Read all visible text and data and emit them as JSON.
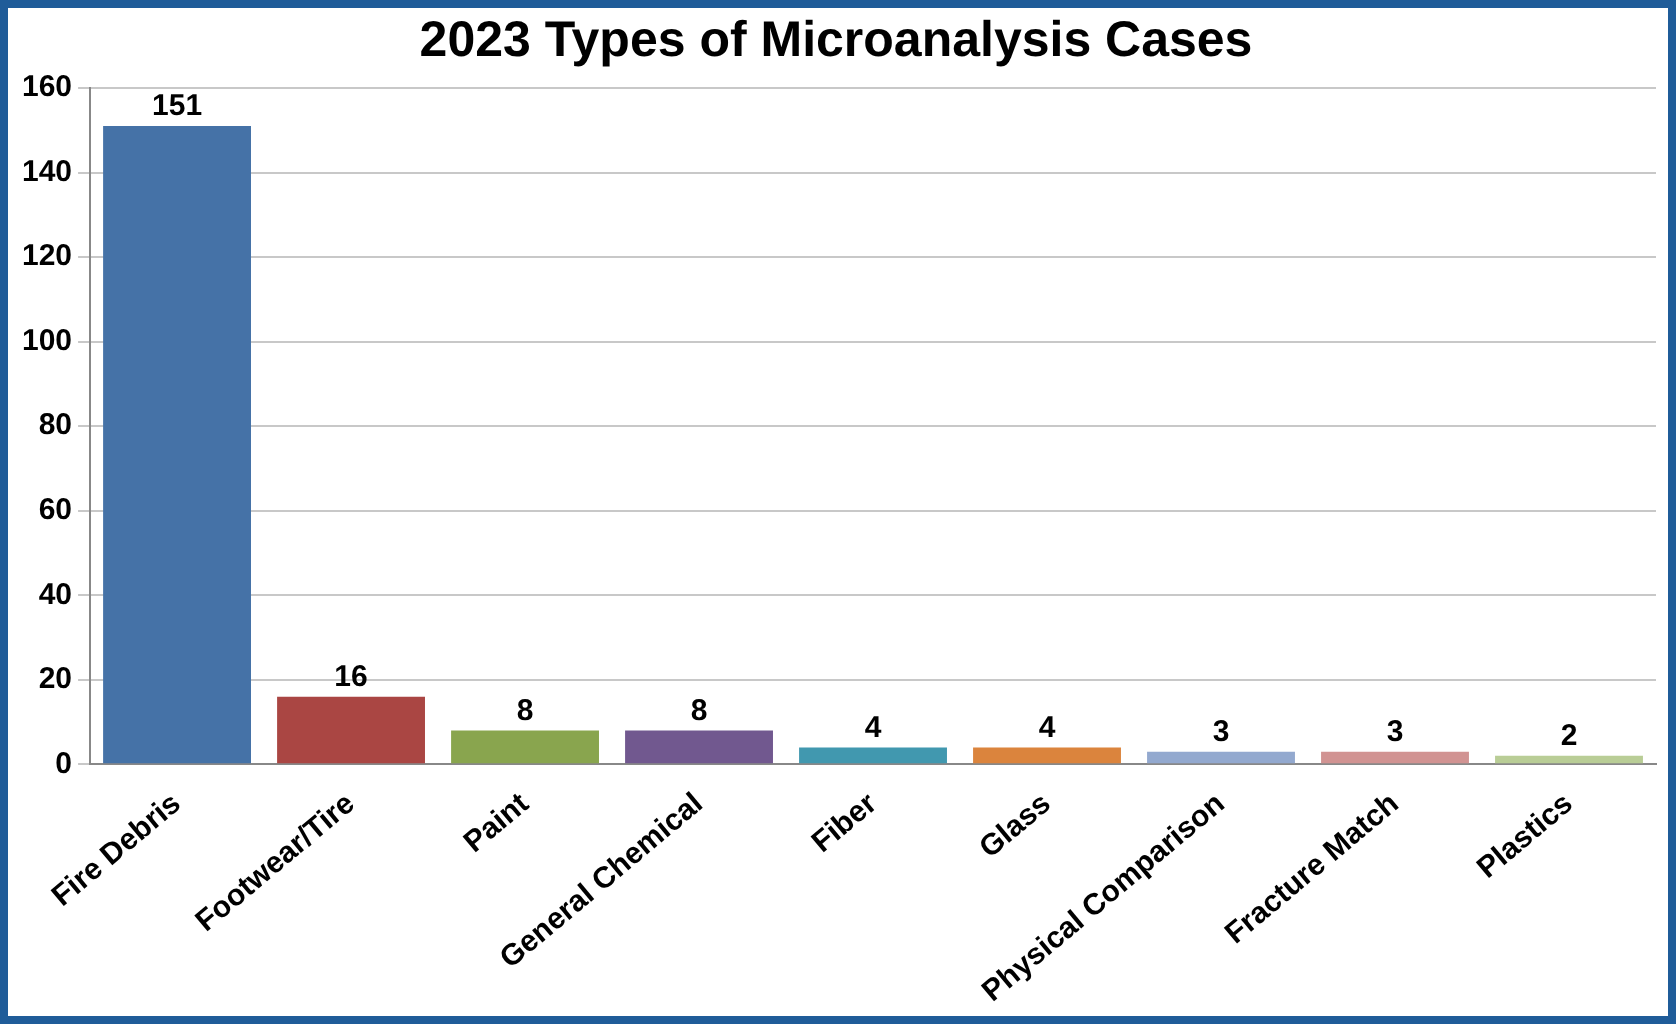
{
  "chart_data": {
    "type": "bar",
    "title": "2023 Types of Microanalysis Cases",
    "categories": [
      "Fire Debris",
      "Footwear/Tire",
      "Paint",
      "General Chemical",
      "Fiber",
      "Glass",
      "Physical Comparison",
      "Fracture Match",
      "Plastics"
    ],
    "values": [
      151,
      16,
      8,
      8,
      4,
      4,
      3,
      3,
      2
    ],
    "colors": [
      "#4572a7",
      "#aa4643",
      "#89a54e",
      "#71588f",
      "#4198af",
      "#db843d",
      "#93a9cf",
      "#d19392",
      "#b9cd96"
    ],
    "ylim": [
      0,
      160
    ],
    "yticks": [
      0,
      20,
      40,
      60,
      80,
      100,
      120,
      140,
      160
    ],
    "grid": "y",
    "data_labels": true,
    "legend": false
  }
}
